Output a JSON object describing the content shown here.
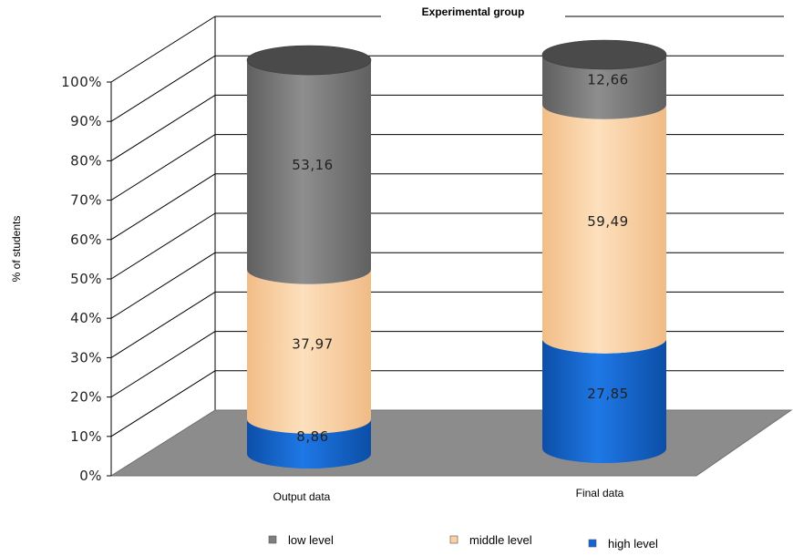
{
  "chart_data": {
    "type": "bar",
    "style": "stacked-100-percent-3d-cylinder",
    "title": "Experimental group",
    "ylabel": "% of students",
    "xlabel": "",
    "ylim": [
      0,
      100
    ],
    "yticks": [
      "0%",
      "10%",
      "20%",
      "30%",
      "40%",
      "50%",
      "60%",
      "70%",
      "80%",
      "90%",
      "100%"
    ],
    "categories": [
      "Output data",
      "Final data"
    ],
    "series": [
      {
        "name": "high level",
        "color": "#1466d2",
        "values": [
          8.86,
          27.85
        ],
        "labels": [
          "8,86",
          "27,85"
        ]
      },
      {
        "name": "middle level",
        "color": "#fbd1a2",
        "values": [
          37.97,
          59.49
        ],
        "labels": [
          "37,97",
          "59,49"
        ]
      },
      {
        "name": "low level",
        "color": "#7f7f7f",
        "values": [
          53.16,
          12.66
        ],
        "labels": [
          "53,16",
          "12,66"
        ]
      }
    ],
    "legend": {
      "position": "bottom",
      "order": [
        "low level",
        "middle level",
        "high level"
      ]
    },
    "grid": true,
    "floor_color": "#8c8c8c"
  }
}
